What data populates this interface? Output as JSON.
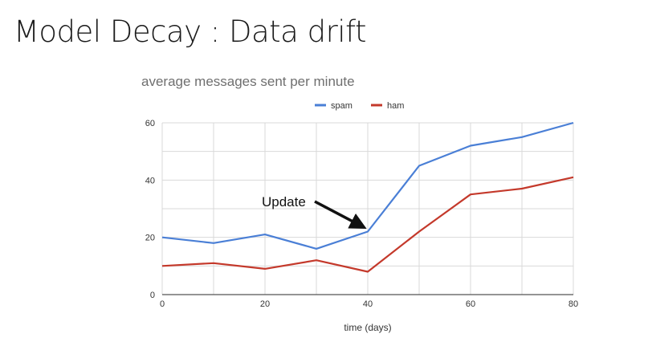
{
  "slide": {
    "title": "Model Decay : Data drift"
  },
  "chart_data": {
    "type": "line",
    "title": "average messages sent per minute",
    "xlabel": "time (days)",
    "ylabel": "",
    "x": [
      0,
      10,
      20,
      30,
      40,
      50,
      60,
      70,
      80
    ],
    "xticks": [
      "0",
      "20",
      "40",
      "60",
      "80"
    ],
    "yticks": [
      "0",
      "20",
      "40",
      "60"
    ],
    "xlim": [
      0,
      80
    ],
    "ylim": [
      0,
      60
    ],
    "grid": true,
    "legend": "top-center",
    "series": [
      {
        "name": "spam",
        "color": "#4a7fd6",
        "values": [
          20,
          18,
          21,
          16,
          22,
          45,
          52,
          55,
          60
        ]
      },
      {
        "name": "ham",
        "color": "#c4392b",
        "values": [
          10,
          11,
          9,
          12,
          8,
          22,
          35,
          37,
          41
        ]
      }
    ],
    "annotations": [
      {
        "text": "Update",
        "x": 40
      }
    ]
  }
}
